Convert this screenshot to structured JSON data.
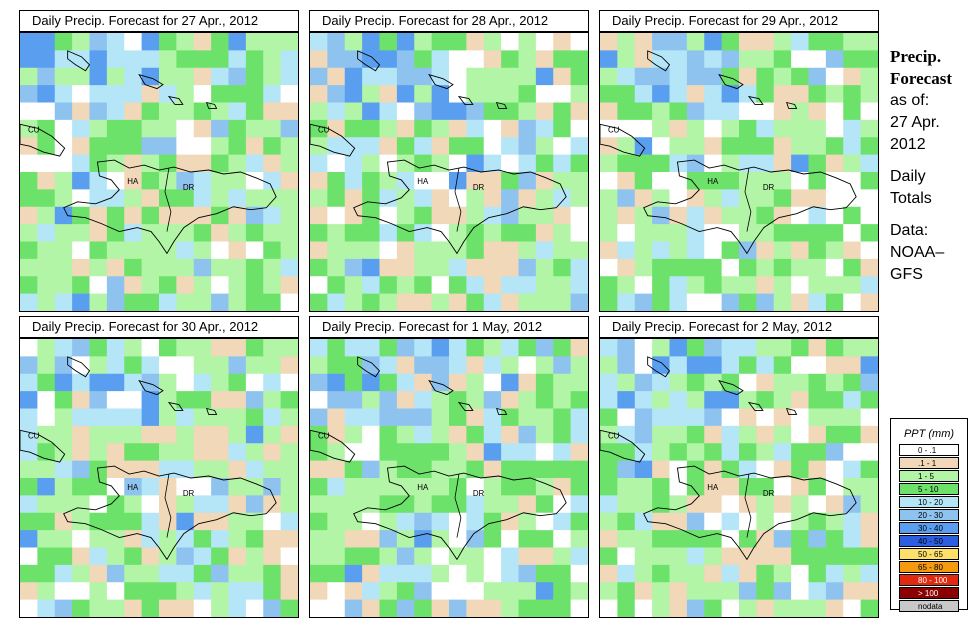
{
  "panels": [
    {
      "title": "Daily Precip. Forecast for 27 Apr., 2012",
      "seed": 1
    },
    {
      "title": "Daily Precip. Forecast for 28 Apr., 2012",
      "seed": 2
    },
    {
      "title": "Daily Precip. Forecast for 29 Apr., 2012",
      "seed": 3
    },
    {
      "title": "Daily Precip. Forecast for 30 Apr., 2012",
      "seed": 4
    },
    {
      "title": "Daily Precip. Forecast for 1 May, 2012",
      "seed": 5
    },
    {
      "title": "Daily Precip. Forecast for 2 May, 2012",
      "seed": 6
    }
  ],
  "map_labels": {
    "cuba": "CU",
    "haiti": "HA",
    "dominican_republic": "DR"
  },
  "side": {
    "title_line1": "Precip.",
    "title_line2": "Forecast",
    "as_of": "as of:",
    "date_line1": "27 Apr.",
    "date_line2": "2012",
    "totals_line1": "Daily",
    "totals_line2": "Totals",
    "data_line1": "Data:",
    "data_line2": "NOAA–",
    "data_line3": "GFS"
  },
  "legend": {
    "title": "PPT (mm)",
    "classes": [
      {
        "label": "0 - .1",
        "color": "#ffffff"
      },
      {
        "label": ".1 - 1",
        "color": "#f0d8b8"
      },
      {
        "label": "1 - 5",
        "color": "#b2f5a6"
      },
      {
        "label": "5 - 10",
        "color": "#6de26b"
      },
      {
        "label": "10 - 20",
        "color": "#b4e6f8"
      },
      {
        "label": "20 - 30",
        "color": "#8ec3f0"
      },
      {
        "label": "30 - 40",
        "color": "#5a9ef0"
      },
      {
        "label": "40 - 50",
        "color": "#2c5ee0"
      },
      {
        "label": "50 - 65",
        "color": "#fde06a"
      },
      {
        "label": "65 - 80",
        "color": "#f59a0f"
      },
      {
        "label": "80 - 100",
        "color": "#e02a10"
      },
      {
        "label": "> 100",
        "color": "#8b0000"
      },
      {
        "label": "nodata",
        "color": "#c8c8c8"
      }
    ]
  }
}
